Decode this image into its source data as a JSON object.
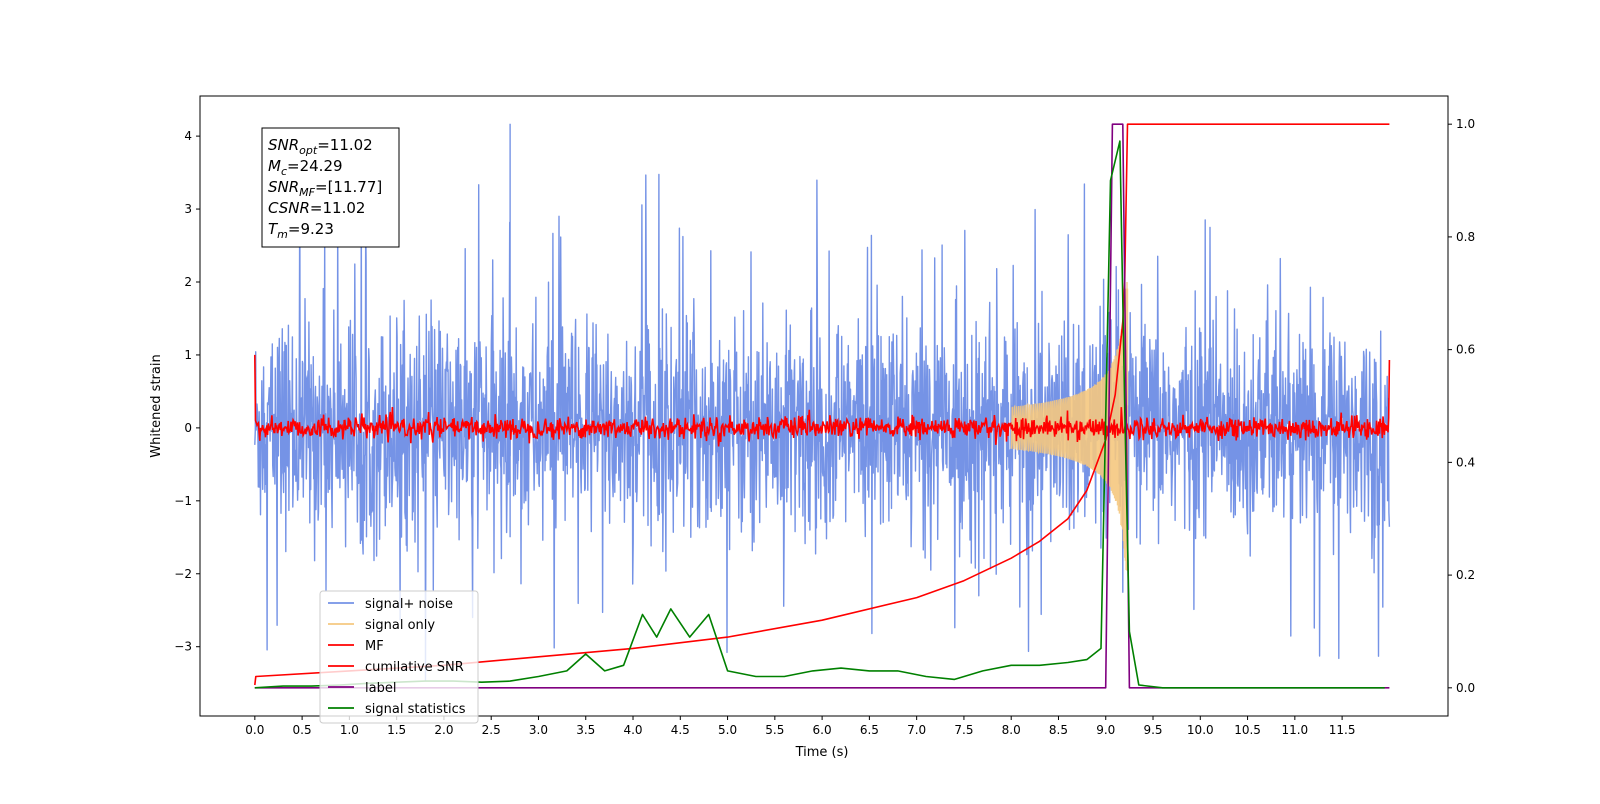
{
  "chart_data": {
    "type": "line",
    "xlabel": "Time (s)",
    "ylabel": "Whitened strain",
    "xlim": [
      -0.58,
      12.62
    ],
    "ylim_left": [
      -3.95,
      4.55
    ],
    "ylim_right": [
      -0.05,
      1.05
    ],
    "x_ticks": [
      0.0,
      0.5,
      1.0,
      1.5,
      2.0,
      2.5,
      3.0,
      3.5,
      4.0,
      4.5,
      5.0,
      5.5,
      6.0,
      6.5,
      7.0,
      7.5,
      8.0,
      8.5,
      9.0,
      9.5,
      10.0,
      10.5,
      11.0,
      11.5
    ],
    "x_tick_labels": [
      "0.0",
      "0.5",
      "1.0",
      "1.5",
      "2.0",
      "2.5",
      "3.0",
      "3.5",
      "4.0",
      "4.5",
      "5.0",
      "5.5",
      "6.0",
      "6.5",
      "7.0",
      "7.5",
      "8.0",
      "8.5",
      "9.0",
      "9.5",
      "10.0",
      "10.5",
      "11.0",
      "11.5"
    ],
    "y_left_ticks": [
      -3,
      -2,
      -1,
      0,
      1,
      2,
      3,
      4
    ],
    "y_left_tick_labels": [
      "−3",
      "−2",
      "−1",
      "0",
      "1",
      "2",
      "3",
      "4"
    ],
    "y_right_ticks": [
      0.0,
      0.2,
      0.4,
      0.6,
      0.8,
      1.0
    ],
    "y_right_tick_labels": [
      "0.0",
      "0.2",
      "0.4",
      "0.6",
      "0.8",
      "1.0"
    ],
    "grid": false,
    "legend_position": "lower-left",
    "series": [
      {
        "name": "signal+ noise",
        "color": "#7593e6",
        "axis": "left",
        "kind": "noise",
        "x_range": [
          0.0,
          12.0
        ],
        "typical_amplitude": [
          -1.8,
          2.1
        ],
        "peak_max": 4.17,
        "peak_min": -3.55
      },
      {
        "name": "signal only",
        "color": "#f5c880",
        "axis": "left",
        "kind": "chirp",
        "x_range": [
          8.0,
          9.23
        ],
        "peak_amplitude": 2.0
      },
      {
        "name": "MF",
        "color": "#ff0000",
        "axis": "left",
        "kind": "noise",
        "x_range": [
          0.0,
          12.0
        ],
        "typical_amplitude": [
          -0.1,
          0.1
        ],
        "edge_values": [
          1.0,
          0.93
        ]
      },
      {
        "name": "cumilative SNR",
        "color": "#ff0000",
        "axis": "right",
        "x": [
          0.0,
          0.01,
          1.0,
          2.0,
          3.0,
          4.0,
          5.0,
          6.0,
          7.0,
          7.5,
          8.0,
          8.3,
          8.6,
          8.8,
          9.0,
          9.1,
          9.18,
          9.2,
          9.23,
          12.0
        ],
        "y": [
          0.005,
          0.02,
          0.03,
          0.04,
          0.055,
          0.07,
          0.09,
          0.12,
          0.16,
          0.19,
          0.23,
          0.26,
          0.3,
          0.35,
          0.44,
          0.52,
          0.65,
          0.72,
          1.0,
          1.0
        ]
      },
      {
        "name": "label",
        "color": "#800080",
        "axis": "right",
        "x": [
          0.0,
          9.0,
          9.07,
          9.18,
          9.25,
          12.0
        ],
        "y": [
          0.0,
          0.0,
          1.0,
          1.0,
          0.0,
          0.0
        ]
      },
      {
        "name": "signal statistics",
        "color": "#008000",
        "axis": "right",
        "x": [
          0.0,
          0.3,
          0.6,
          0.9,
          1.2,
          1.5,
          1.8,
          2.1,
          2.4,
          2.7,
          3.0,
          3.3,
          3.5,
          3.7,
          3.9,
          4.1,
          4.25,
          4.4,
          4.6,
          4.8,
          5.0,
          5.3,
          5.6,
          5.9,
          6.2,
          6.5,
          6.8,
          7.1,
          7.4,
          7.7,
          8.0,
          8.3,
          8.6,
          8.8,
          8.95,
          9.05,
          9.15,
          9.2,
          9.25,
          9.35,
          9.6,
          10.0,
          11.0,
          11.95
        ],
        "y": [
          0.0,
          0.003,
          0.003,
          0.005,
          0.008,
          0.01,
          0.012,
          0.012,
          0.01,
          0.012,
          0.02,
          0.03,
          0.06,
          0.03,
          0.04,
          0.13,
          0.09,
          0.14,
          0.09,
          0.13,
          0.03,
          0.02,
          0.02,
          0.03,
          0.035,
          0.03,
          0.03,
          0.02,
          0.015,
          0.03,
          0.04,
          0.04,
          0.045,
          0.05,
          0.07,
          0.9,
          0.97,
          0.5,
          0.1,
          0.005,
          0.0,
          0.0,
          0.0,
          0.0
        ]
      }
    ],
    "annotation": {
      "lines": [
        {
          "main": "SNR",
          "sub": "opt",
          "value": "=11.02"
        },
        {
          "main": "M",
          "sub": "c",
          "value": "=24.29"
        },
        {
          "main": "SNR",
          "sub": "MF",
          "value": "=[11.77]"
        },
        {
          "main": "CSNR",
          "sub": "",
          "value": "=11.02"
        },
        {
          "main": "T",
          "sub": "m",
          "value": "=9.23"
        }
      ]
    }
  }
}
